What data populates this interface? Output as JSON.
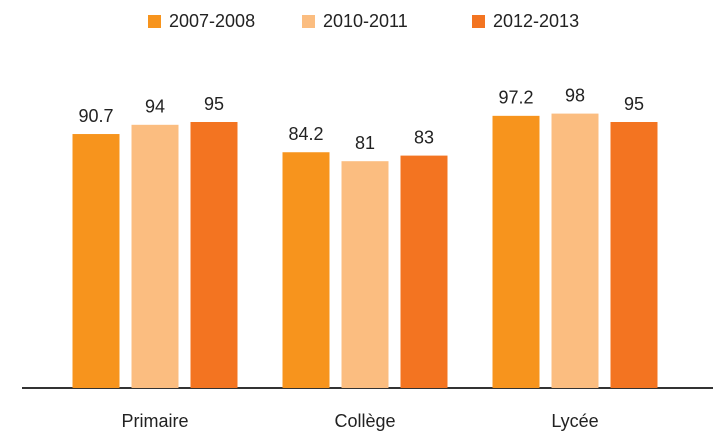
{
  "chart_data": {
    "type": "bar",
    "categories": [
      "Primaire",
      "Collège",
      "Lycée"
    ],
    "series": [
      {
        "name": "2007-2008",
        "color": "#f7941d",
        "values": [
          90.7,
          84.2,
          97.2
        ]
      },
      {
        "name": "2010-2011",
        "color": "#fbbd80",
        "values": [
          94,
          81,
          98
        ]
      },
      {
        "name": "2012-2013",
        "color": "#f37421",
        "values": [
          95,
          83,
          95
        ]
      }
    ],
    "legend": "top"
  }
}
